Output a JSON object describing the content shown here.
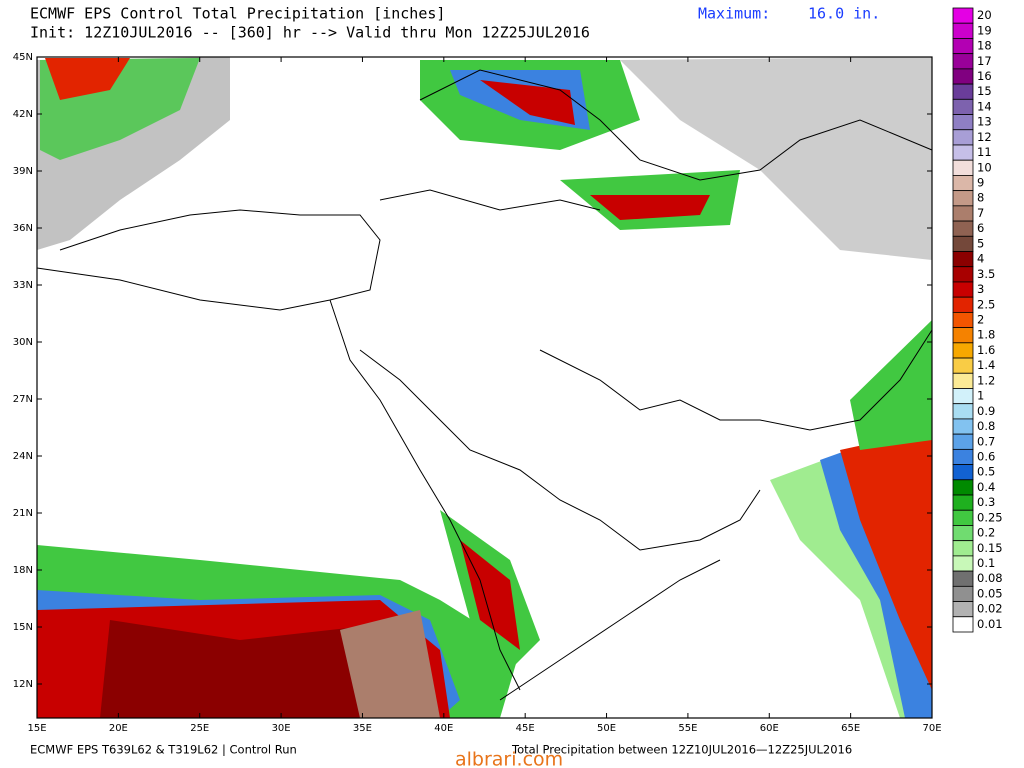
{
  "header": {
    "title": "ECMWF EPS Control Total Precipitation [inches]",
    "subtitle": "Init: 12Z10JUL2016 -- [360] hr --> Valid thru Mon 12Z25JUL2016",
    "maximum_label": "Maximum:",
    "maximum_value": "16.0 in."
  },
  "map": {
    "lat_labels": [
      "45N",
      "42N",
      "39N",
      "36N",
      "33N",
      "30N",
      "27N",
      "24N",
      "21N",
      "18N",
      "15N",
      "12N"
    ],
    "lon_labels": [
      "15E",
      "20E",
      "25E",
      "30E",
      "35E",
      "40E",
      "45E",
      "50E",
      "55E",
      "60E",
      "65E",
      "70E"
    ]
  },
  "legend": {
    "levels": [
      "20",
      "19",
      "18",
      "17",
      "16",
      "15",
      "14",
      "13",
      "12",
      "11",
      "10",
      "9",
      "8",
      "7",
      "6",
      "5",
      "4",
      "3.5",
      "3",
      "2.5",
      "2",
      "1.8",
      "1.6",
      "1.4",
      "1.2",
      "1",
      "0.9",
      "0.8",
      "0.7",
      "0.6",
      "0.5",
      "0.4",
      "0.3",
      "0.25",
      "0.2",
      "0.15",
      "0.1",
      "0.08",
      "0.05",
      "0.02",
      "0.01"
    ],
    "colors": [
      "#e400e4",
      "#cc00cc",
      "#b300b3",
      "#990099",
      "#800080",
      "#6a3d9a",
      "#7d62ae",
      "#8f7fc4",
      "#a89ed6",
      "#c6bfe8",
      "#f2dedb",
      "#dbb7a8",
      "#c49a88",
      "#ab7e6c",
      "#8f6252",
      "#74483a",
      "#8b0000",
      "#a80000",
      "#c80000",
      "#e22400",
      "#f25500",
      "#f58200",
      "#f7a800",
      "#f9cc45",
      "#fbea96",
      "#d2f1fa",
      "#a9ddf2",
      "#82c2f0",
      "#5ca2e8",
      "#3b82e0",
      "#1262d2",
      "#008a00",
      "#1fb01f",
      "#41c841",
      "#70dc70",
      "#a0ec90",
      "#c8f8b8",
      "#707070",
      "#909090",
      "#b2b2b2",
      "#ffffff"
    ]
  },
  "footer": {
    "left": "ECMWF EPS T639L62 & T319L62 | Control Run",
    "right": "Total Precipitation between 12Z10JUL2016—12Z25JUL2016"
  },
  "watermark": "albrari.com"
}
